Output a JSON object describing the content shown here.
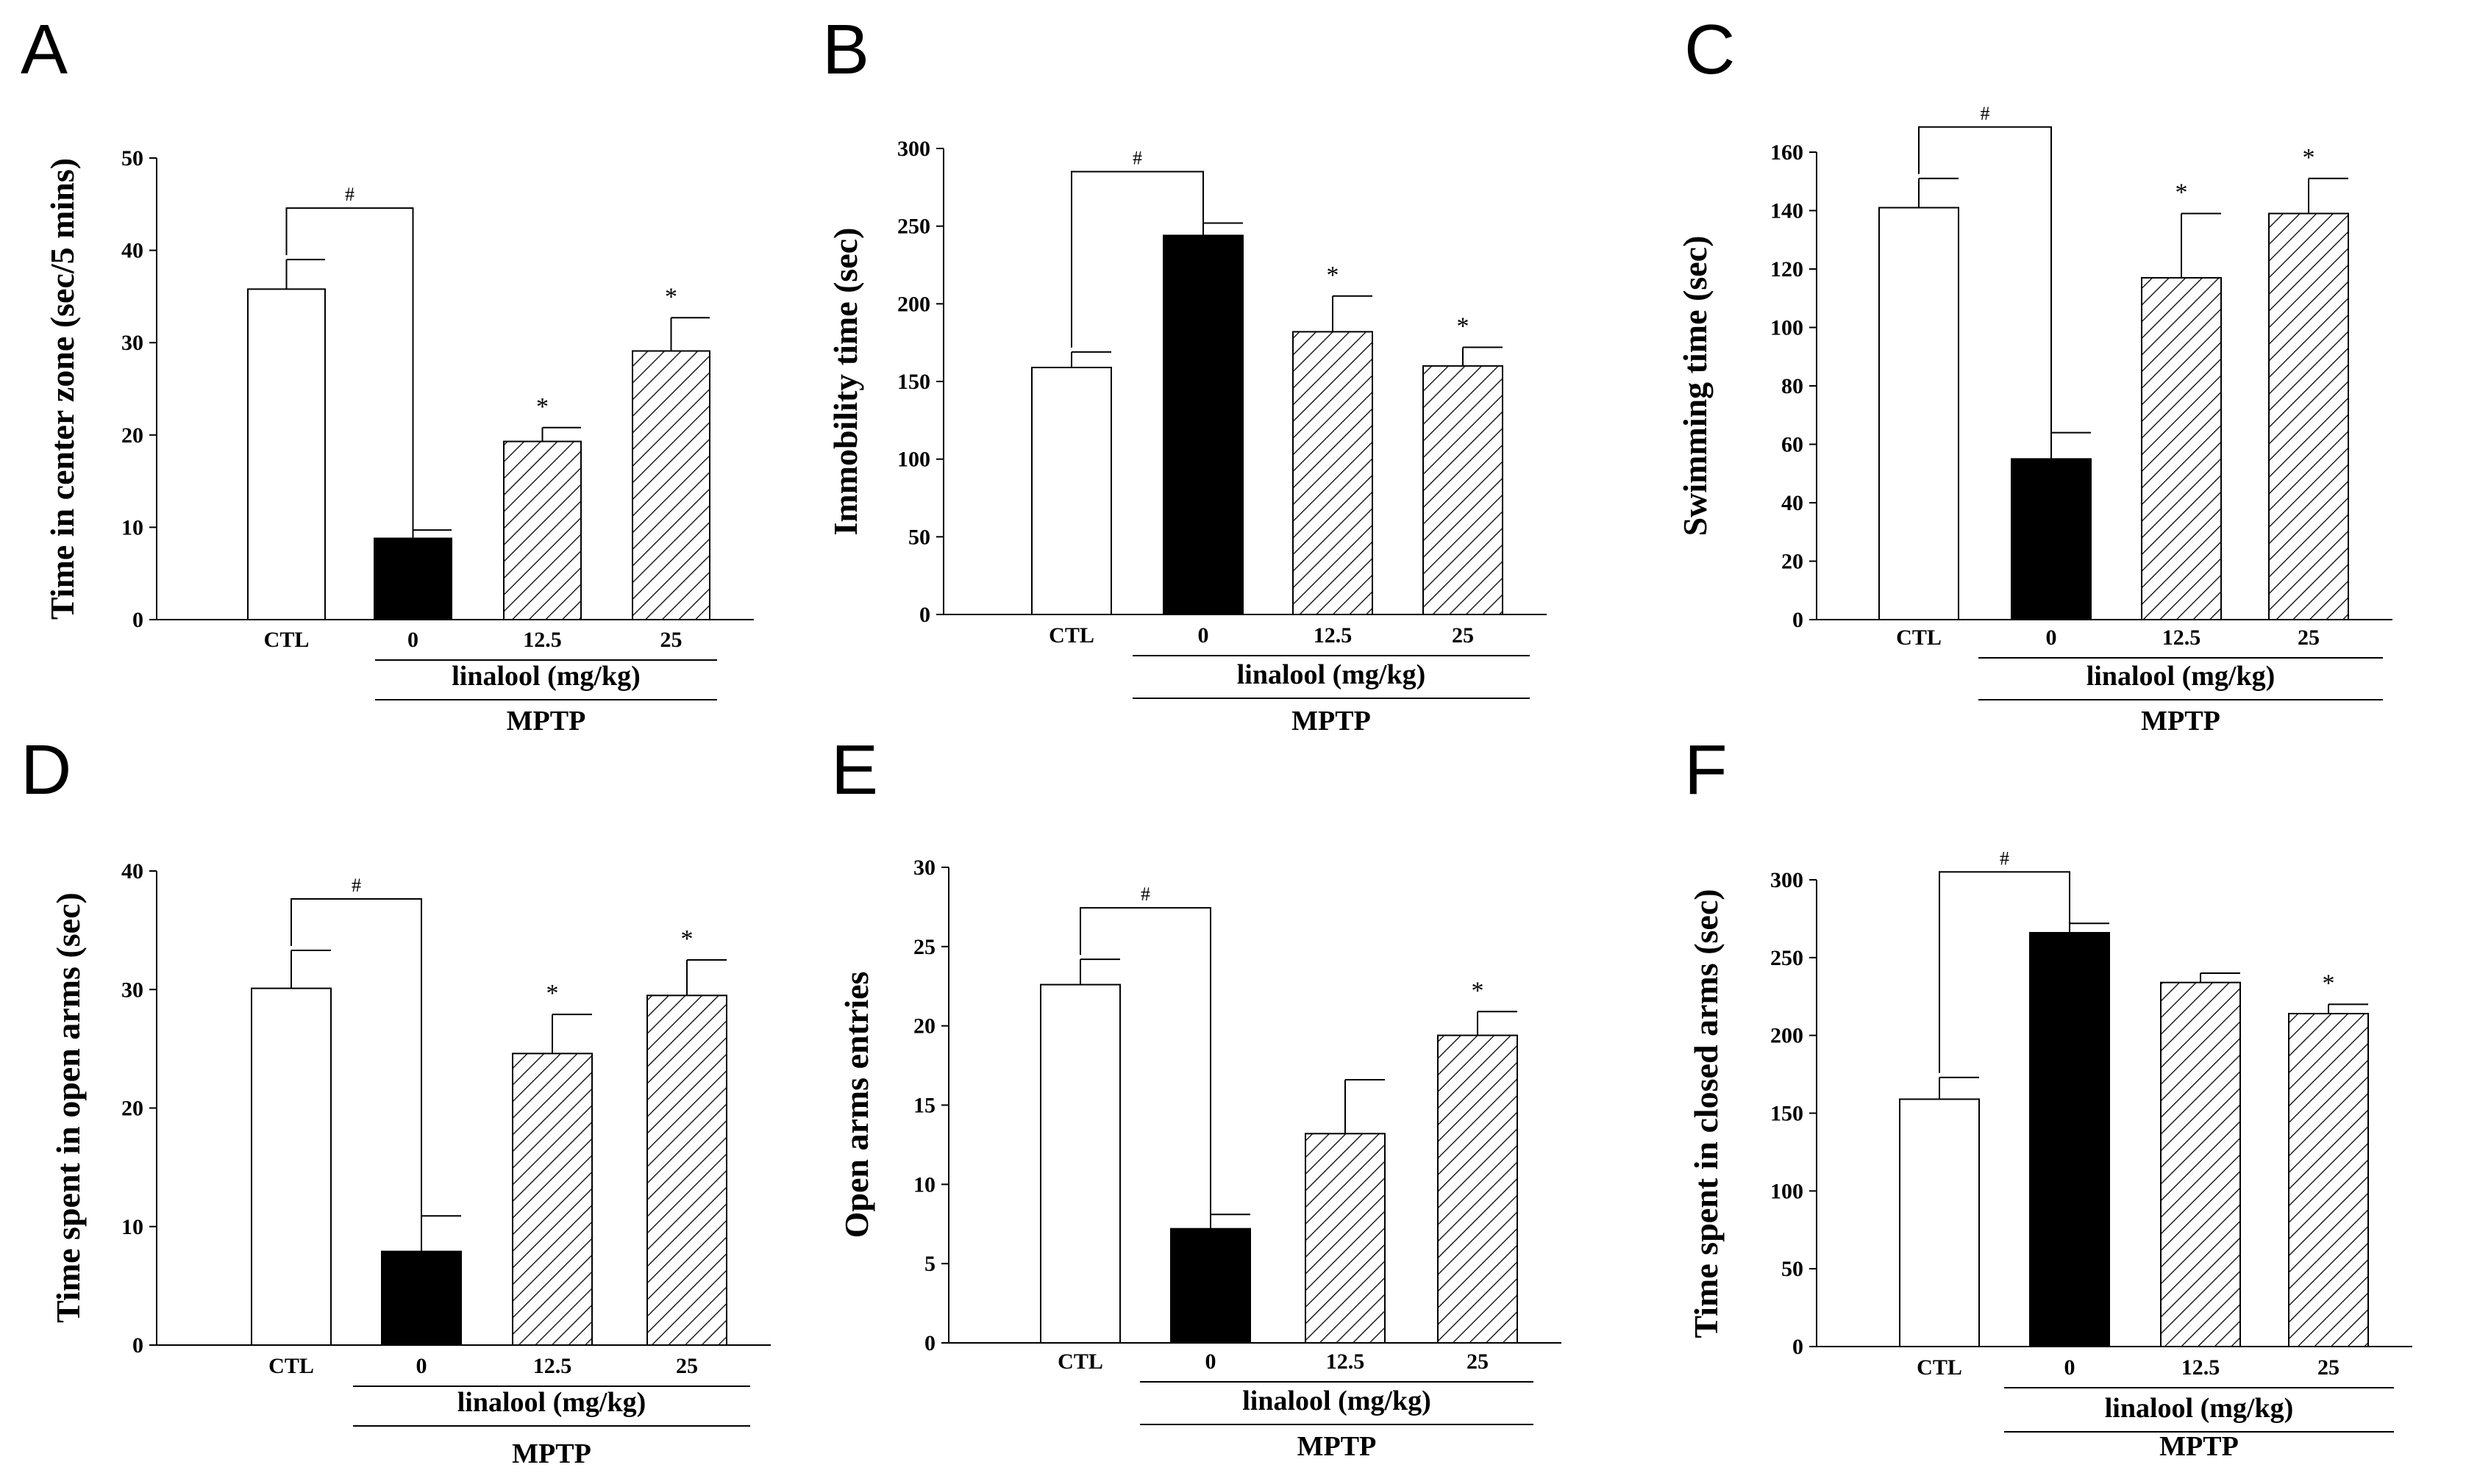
{
  "colors": {
    "ctl": "#ffffff",
    "mptp0": "#000000",
    "hatch": "#000000",
    "axis": "#000000"
  },
  "chart_data": [
    {
      "panel": "A",
      "type": "bar",
      "ylabel": "Time in center zone (sec/5 mins)",
      "categories": [
        "CTL",
        "0",
        "12.5",
        "25"
      ],
      "values": [
        35.8,
        8.8,
        19.3,
        29.1
      ],
      "errors": [
        3.2,
        0.9,
        1.5,
        3.6
      ],
      "fills": [
        "white",
        "black",
        "hatch",
        "hatch"
      ],
      "ylim": [
        0,
        50
      ],
      "ticks": [
        "0",
        "10",
        "20",
        "30",
        "40",
        "50"
      ],
      "significance": [
        "",
        "",
        "*",
        "*"
      ],
      "comparison_label": "#",
      "group_label": "linalool (mg/kg)",
      "outer_label": "MPTP"
    },
    {
      "panel": "B",
      "type": "bar",
      "ylabel": "Immobility time (sec)",
      "categories": [
        "CTL",
        "0",
        "12.5",
        "25"
      ],
      "values": [
        159,
        244,
        182,
        160
      ],
      "errors": [
        10,
        8,
        23,
        12
      ],
      "fills": [
        "white",
        "black",
        "hatch",
        "hatch"
      ],
      "ylim": [
        0,
        300
      ],
      "ticks": [
        "0",
        "50",
        "100",
        "150",
        "200",
        "250",
        "300"
      ],
      "significance": [
        "",
        "",
        "*",
        "*"
      ],
      "comparison_label": "#",
      "group_label": "linalool (mg/kg)",
      "outer_label": "MPTP"
    },
    {
      "panel": "C",
      "type": "bar",
      "ylabel": "Swimming time (sec)",
      "categories": [
        "CTL",
        "0",
        "12.5",
        "25"
      ],
      "values": [
        141,
        55,
        117,
        139
      ],
      "errors": [
        10,
        9,
        22,
        12
      ],
      "fills": [
        "white",
        "black",
        "hatch",
        "hatch"
      ],
      "ylim": [
        0,
        160
      ],
      "ticks": [
        "0",
        "20",
        "40",
        "60",
        "80",
        "100",
        "120",
        "140",
        "160"
      ],
      "significance": [
        "",
        "",
        "*",
        "*"
      ],
      "comparison_label": "#",
      "group_label": "linalool (mg/kg)",
      "outer_label": "MPTP"
    },
    {
      "panel": "D",
      "type": "bar",
      "ylabel": "Time spent in open arms (sec)",
      "categories": [
        "CTL",
        "0",
        "12.5",
        "25"
      ],
      "values": [
        30.1,
        7.9,
        24.6,
        29.5
      ],
      "errors": [
        3.2,
        3.0,
        3.3,
        3.0
      ],
      "fills": [
        "white",
        "black",
        "hatch",
        "hatch"
      ],
      "ylim": [
        0,
        40
      ],
      "ticks": [
        "0",
        "10",
        "20",
        "30",
        "40"
      ],
      "significance": [
        "",
        "",
        "*",
        "*"
      ],
      "comparison_label": "#",
      "group_label": "linalool (mg/kg)",
      "outer_label": "MPTP"
    },
    {
      "panel": "E",
      "type": "bar",
      "ylabel": "Open arms entries",
      "categories": [
        "CTL",
        "0",
        "12.5",
        "25"
      ],
      "values": [
        22.6,
        7.2,
        13.2,
        19.4
      ],
      "errors": [
        1.6,
        0.9,
        3.4,
        1.5
      ],
      "fills": [
        "white",
        "black",
        "hatch",
        "hatch"
      ],
      "ylim": [
        0,
        30
      ],
      "ticks": [
        "0",
        "5",
        "10",
        "15",
        "20",
        "25",
        "30"
      ],
      "significance": [
        "",
        "",
        "",
        "*"
      ],
      "comparison_label": "#",
      "group_label": "linalool (mg/kg)",
      "outer_label": "MPTP"
    },
    {
      "panel": "F",
      "type": "bar",
      "ylabel": "Time spent in closed arms (sec)",
      "categories": [
        "CTL",
        "0",
        "12.5",
        "25"
      ],
      "values": [
        159,
        266,
        234,
        214
      ],
      "errors": [
        14,
        6,
        6,
        6
      ],
      "fills": [
        "white",
        "black",
        "hatch",
        "hatch"
      ],
      "ylim": [
        0,
        300
      ],
      "ticks": [
        "0",
        "50",
        "100",
        "150",
        "200",
        "250",
        "300"
      ],
      "significance": [
        "",
        "",
        "",
        "*"
      ],
      "comparison_label": "#",
      "group_label": "linalool (mg/kg)",
      "outer_label": "MPTP"
    }
  ]
}
